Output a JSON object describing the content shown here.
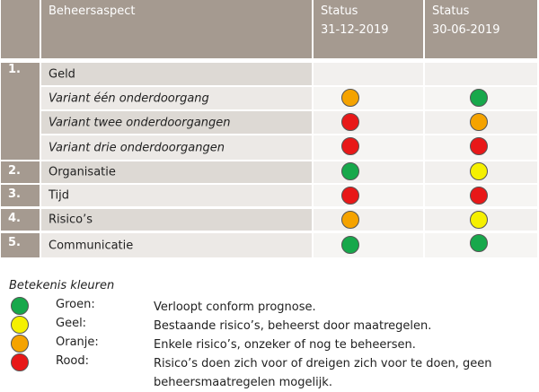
{
  "header": {
    "aspect_label": "Beheersaspect",
    "col1_line1": "Status",
    "col1_line2": "31-12-2019",
    "col2_line1": "Status",
    "col2_line2": "30-06-2019"
  },
  "rows": [
    {
      "num": "1.",
      "label": "Geld",
      "italic": false,
      "status1": "",
      "status2": ""
    },
    {
      "num": "",
      "label": "Variant één onderdoorgang",
      "italic": true,
      "status1": "orange",
      "status2": "green"
    },
    {
      "num": "",
      "label": "Variant twee onderdoorgangen",
      "italic": true,
      "status1": "red",
      "status2": "orange"
    },
    {
      "num": "",
      "label": "Variant drie onderdoorgangen",
      "italic": true,
      "status1": "red",
      "status2": "red"
    },
    {
      "num": "2.",
      "label": "Organisatie",
      "italic": false,
      "status1": "green",
      "status2": "yellow"
    },
    {
      "num": "3.",
      "label": "Tijd",
      "italic": false,
      "status1": "red",
      "status2": "red"
    },
    {
      "num": "4.",
      "label": "Risico’s",
      "italic": false,
      "status1": "orange",
      "status2": "yellow"
    },
    {
      "num": "5.",
      "label": "Communicatie",
      "italic": false,
      "status1": "green",
      "status2": "green"
    }
  ],
  "legend": {
    "title": "Betekenis kleuren",
    "items": [
      {
        "color": "green",
        "name": "Groen:",
        "desc": "Verloopt conform prognose."
      },
      {
        "color": "yellow",
        "name": "Geel:",
        "desc": "Bestaande risico’s, beheerst door maatregelen."
      },
      {
        "color": "orange",
        "name": "Oranje:",
        "desc": "Enkele risico’s, onzeker of nog te beheersen."
      },
      {
        "color": "red",
        "name": "Rood:",
        "desc": "Risico’s doen zich voor of dreigen zich voor te doen, geen beheersmaatregelen mogelijk."
      }
    ]
  },
  "colors": {
    "header_bg": "#a59a90",
    "green": "#17a84b",
    "yellow": "#f5f000",
    "orange": "#f5a300",
    "red": "#e81818"
  }
}
